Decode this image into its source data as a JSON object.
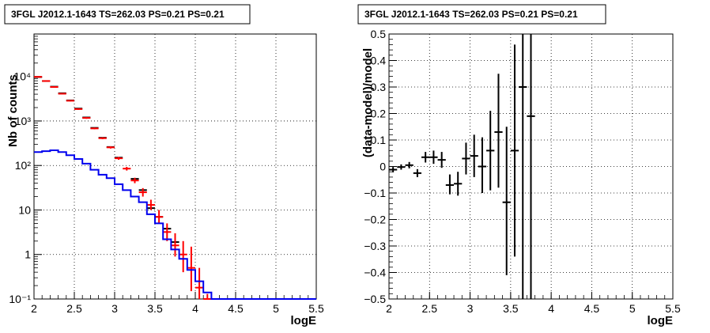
{
  "chart_data": [
    {
      "type": "histogram",
      "title": "3FGL J2012.1-1643 TS=262.03 PS=0.21 PS=0.21",
      "xlabel": "logE",
      "ylabel": "Nb of counts",
      "xlim": [
        2,
        5.5
      ],
      "ylim": [
        0.1,
        90000
      ],
      "yscale": "log",
      "grid": true,
      "xticks": [
        {
          "v": 2,
          "label": "2"
        },
        {
          "v": 2.5,
          "label": "2.5"
        },
        {
          "v": 3,
          "label": "3"
        },
        {
          "v": 3.5,
          "label": "3.5"
        },
        {
          "v": 4,
          "label": "4"
        },
        {
          "v": 4.5,
          "label": "4.5"
        },
        {
          "v": 5,
          "label": "5"
        },
        {
          "v": 5.5,
          "label": "5.5"
        }
      ],
      "yticks": [
        {
          "v": 0.1,
          "label": "10⁻¹"
        },
        {
          "v": 1,
          "label": "1"
        },
        {
          "v": 10,
          "label": "10"
        },
        {
          "v": 100,
          "label": "10²"
        },
        {
          "v": 1000,
          "label": "10³"
        },
        {
          "v": 10000,
          "label": "10⁴"
        }
      ],
      "bin_width": 0.1,
      "series": [
        {
          "role": "data",
          "color": "#000000",
          "points": [
            {
              "x": 2.05,
              "y": 9700
            },
            {
              "x": 2.15,
              "y": 7900
            },
            {
              "x": 2.25,
              "y": 5900
            },
            {
              "x": 2.35,
              "y": 4200
            },
            {
              "x": 2.45,
              "y": 2900
            },
            {
              "x": 2.55,
              "y": 1900
            },
            {
              "x": 2.65,
              "y": 1200
            },
            {
              "x": 2.75,
              "y": 700
            },
            {
              "x": 2.85,
              "y": 420
            },
            {
              "x": 2.95,
              "y": 260
            },
            {
              "x": 3.05,
              "y": 150
            },
            {
              "x": 3.25,
              "y": 50
            },
            {
              "x": 3.35,
              "y": 28
            },
            {
              "x": 3.45,
              "y": 11
            },
            {
              "x": 3.55,
              "y": 7
            },
            {
              "x": 3.65,
              "y": 3.8
            },
            {
              "x": 3.75,
              "y": 1.9
            }
          ]
        },
        {
          "role": "model-total",
          "color": "#ff0000",
          "points": [
            {
              "x": 2.05,
              "y": 9800,
              "lo": 9600,
              "hi": 10000
            },
            {
              "x": 2.15,
              "y": 7900,
              "lo": 7750,
              "hi": 8050
            },
            {
              "x": 2.25,
              "y": 5800,
              "lo": 5650,
              "hi": 5950
            },
            {
              "x": 2.35,
              "y": 4100,
              "lo": 3980,
              "hi": 4220
            },
            {
              "x": 2.45,
              "y": 2850,
              "lo": 2760,
              "hi": 2940
            },
            {
              "x": 2.55,
              "y": 1850,
              "lo": 1780,
              "hi": 1920
            },
            {
              "x": 2.65,
              "y": 1170,
              "lo": 1120,
              "hi": 1220
            },
            {
              "x": 2.75,
              "y": 680,
              "lo": 650,
              "hi": 710
            },
            {
              "x": 2.85,
              "y": 410,
              "lo": 390,
              "hi": 430
            },
            {
              "x": 2.95,
              "y": 255,
              "lo": 240,
              "hi": 270
            },
            {
              "x": 3.05,
              "y": 145,
              "lo": 134,
              "hi": 156
            },
            {
              "x": 3.15,
              "y": 85,
              "lo": 77,
              "hi": 93
            },
            {
              "x": 3.25,
              "y": 46,
              "lo": 40,
              "hi": 53
            },
            {
              "x": 3.35,
              "y": 25,
              "lo": 20,
              "hi": 31
            },
            {
              "x": 3.45,
              "y": 13,
              "lo": 10,
              "hi": 17
            },
            {
              "x": 3.55,
              "y": 7,
              "lo": 5,
              "hi": 10
            },
            {
              "x": 3.65,
              "y": 3.2,
              "lo": 2,
              "hi": 5
            },
            {
              "x": 3.75,
              "y": 1.6,
              "lo": 0.9,
              "hi": 3
            },
            {
              "x": 3.85,
              "y": 1,
              "lo": 0.4,
              "hi": 2
            },
            {
              "x": 3.95,
              "y": 0.5,
              "lo": 0.15,
              "hi": 1.5
            },
            {
              "x": 4.05,
              "y": 0.18,
              "lo": 0.1,
              "hi": 0.5
            },
            {
              "x": 4.15,
              "y": 0.1,
              "lo": 0.1,
              "hi": 0.13
            }
          ]
        },
        {
          "role": "model-component",
          "color": "#0000ee",
          "step_edges": [
            2.0,
            2.1,
            2.2,
            2.3,
            2.4,
            2.5,
            2.6,
            2.7,
            2.8,
            2.9,
            3.0,
            3.1,
            3.2,
            3.3,
            3.4,
            3.5,
            3.6,
            3.7,
            3.8,
            3.9,
            4.0,
            4.1,
            4.2,
            4.3,
            5.5
          ],
          "step_values": [
            200,
            210,
            220,
            200,
            170,
            140,
            110,
            80,
            62,
            52,
            38,
            28,
            20,
            15,
            8,
            5,
            2.2,
            1.3,
            0.8,
            0.45,
            0.25,
            0.14,
            0.1,
            0.1
          ]
        }
      ]
    },
    {
      "type": "scatter",
      "title": "3FGL J2012.1-1643 TS=262.03 PS=0.21 PS=0.21",
      "xlabel": "logE",
      "ylabel": "(data-model)/model",
      "xlim": [
        2,
        5.5
      ],
      "ylim": [
        -0.5,
        0.5
      ],
      "grid": true,
      "xticks": [
        {
          "v": 2,
          "label": "2"
        },
        {
          "v": 2.5,
          "label": "2.5"
        },
        {
          "v": 3,
          "label": "3"
        },
        {
          "v": 3.5,
          "label": "3.5"
        },
        {
          "v": 4,
          "label": "4"
        },
        {
          "v": 4.5,
          "label": "4.5"
        },
        {
          "v": 5,
          "label": "5"
        },
        {
          "v": 5.5,
          "label": "5.5"
        }
      ],
      "yticks": [
        {
          "v": -0.5,
          "label": "−0.5"
        },
        {
          "v": -0.4,
          "label": "−0.4"
        },
        {
          "v": -0.3,
          "label": "−0.3"
        },
        {
          "v": -0.2,
          "label": "−0.2"
        },
        {
          "v": -0.1,
          "label": "−0.1"
        },
        {
          "v": 0,
          "label": "0"
        },
        {
          "v": 0.1,
          "label": "0.1"
        },
        {
          "v": 0.2,
          "label": "0.2"
        },
        {
          "v": 0.3,
          "label": "0.3"
        },
        {
          "v": 0.4,
          "label": "0.4"
        },
        {
          "v": 0.5,
          "label": "0.5"
        }
      ],
      "bin_width": 0.1,
      "series": [
        {
          "role": "residual",
          "color": "#000000",
          "points": [
            {
              "x": 2.05,
              "y": -0.012,
              "lo": -0.022,
              "hi": -0.002
            },
            {
              "x": 2.15,
              "y": -0.002,
              "lo": -0.012,
              "hi": 0.008
            },
            {
              "x": 2.25,
              "y": 0.005,
              "lo": -0.007,
              "hi": 0.017
            },
            {
              "x": 2.35,
              "y": -0.025,
              "lo": -0.04,
              "hi": -0.01
            },
            {
              "x": 2.45,
              "y": 0.035,
              "lo": 0.015,
              "hi": 0.055
            },
            {
              "x": 2.55,
              "y": 0.035,
              "lo": 0.01,
              "hi": 0.06
            },
            {
              "x": 2.65,
              "y": 0.025,
              "lo": -0.005,
              "hi": 0.055
            },
            {
              "x": 2.75,
              "y": -0.07,
              "lo": -0.105,
              "hi": -0.03
            },
            {
              "x": 2.85,
              "y": -0.065,
              "lo": -0.11,
              "hi": -0.02
            },
            {
              "x": 2.95,
              "y": 0.03,
              "lo": -0.03,
              "hi": 0.09
            },
            {
              "x": 3.05,
              "y": 0.04,
              "lo": -0.04,
              "hi": 0.12
            },
            {
              "x": 3.15,
              "y": 0.0,
              "lo": -0.1,
              "hi": 0.11
            },
            {
              "x": 3.25,
              "y": 0.06,
              "lo": -0.09,
              "hi": 0.21
            },
            {
              "x": 3.35,
              "y": 0.13,
              "lo": -0.08,
              "hi": 0.35
            },
            {
              "x": 3.45,
              "y": -0.135,
              "lo": -0.41,
              "hi": 0.15
            },
            {
              "x": 3.55,
              "y": 0.06,
              "lo": -0.34,
              "hi": 0.46
            },
            {
              "x": 3.65,
              "y": 0.3,
              "lo": -0.5,
              "hi": 0.5
            },
            {
              "x": 3.75,
              "y": 0.19,
              "lo": -0.5,
              "hi": 0.5
            }
          ]
        }
      ]
    }
  ]
}
